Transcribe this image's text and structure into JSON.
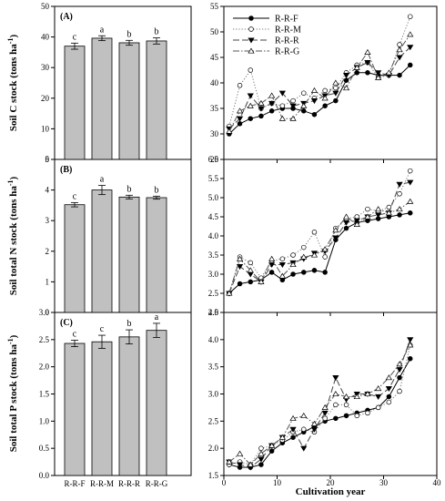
{
  "chart_data": [
    {
      "panel": "(A)",
      "type": "bar",
      "ylabel": "Soil C stock (tons ha",
      "ylabel_sup": "-1",
      "ylabel_close": ")",
      "categories": [
        "R-R-F",
        "R-R-M",
        "R-R-R",
        "R-R-G"
      ],
      "values": [
        37.0,
        39.6,
        38.1,
        38.7
      ],
      "errors": [
        1.0,
        0.8,
        0.8,
        1.0
      ],
      "letters": [
        "c",
        "a",
        "b",
        "b"
      ],
      "ylim": [
        0,
        50
      ],
      "yticks": [
        0,
        10,
        20,
        30,
        40,
        50
      ]
    },
    {
      "panel": "(B)",
      "type": "bar",
      "ylabel": "Soil total N stock (tons ha",
      "ylabel_sup": "-1",
      "ylabel_close": ")",
      "categories": [
        "R-R-F",
        "R-R-M",
        "R-R-R",
        "R-R-G"
      ],
      "values": [
        3.52,
        4.0,
        3.77,
        3.75
      ],
      "errors": [
        0.07,
        0.15,
        0.06,
        0.05
      ],
      "letters": [
        "c",
        "a",
        "b",
        "b"
      ],
      "ylim": [
        0,
        5
      ],
      "yticks": [
        0,
        1,
        2,
        3,
        4,
        5
      ]
    },
    {
      "panel": "(C)",
      "type": "bar",
      "ylabel": "Soil total P stock (tons ha",
      "ylabel_sup": "-1",
      "ylabel_close": ")",
      "categories": [
        "R-R-F",
        "R-R-M",
        "R-R-R",
        "R-R-G"
      ],
      "values": [
        2.43,
        2.46,
        2.55,
        2.67
      ],
      "errors": [
        0.06,
        0.12,
        0.13,
        0.13
      ],
      "letters": [
        "c",
        "c",
        "b",
        "a"
      ],
      "ylim": [
        0,
        3.0
      ],
      "yticks": [
        "0.0",
        "0.5",
        "1.0",
        "1.5",
        "2.0",
        "2.5",
        "3.0"
      ]
    },
    {
      "type": "line",
      "legend": {
        "placement": "top-left",
        "entries": [
          "R-R-F",
          "R-R-M",
          "R-R-R",
          "R-R-G"
        ]
      },
      "ylim": [
        25,
        55
      ],
      "yticks": [
        25,
        30,
        35,
        40,
        45,
        50,
        55
      ],
      "series": [
        {
          "name": "R-R-F",
          "x": [
            1,
            3,
            5,
            7,
            9,
            11,
            13,
            15,
            17,
            19,
            21,
            23,
            25,
            27,
            29,
            31,
            33,
            35
          ],
          "y": [
            30.0,
            32.0,
            33.0,
            33.5,
            34.5,
            35.0,
            35.0,
            34.5,
            33.8,
            35.5,
            36.5,
            40.5,
            42.0,
            42.0,
            41.5,
            41.5,
            41.5,
            43.5
          ]
        },
        {
          "name": "R-R-M",
          "x": [
            1,
            3,
            5,
            7,
            9,
            11,
            13,
            15,
            17,
            19,
            21,
            23,
            25,
            27,
            29,
            31,
            33,
            35
          ],
          "y": [
            31.5,
            39.5,
            42.5,
            35.0,
            36.0,
            35.5,
            36.5,
            38.0,
            37.0,
            38.5,
            39.0,
            42.0,
            43.5,
            44.0,
            41.0,
            41.5,
            47.5,
            53.0
          ]
        },
        {
          "name": "R-R-R",
          "x": [
            1,
            3,
            5,
            7,
            9,
            11,
            13,
            15,
            17,
            19,
            21,
            23,
            25,
            27,
            29,
            31,
            33,
            35
          ],
          "y": [
            31.0,
            33.0,
            37.5,
            35.0,
            36.0,
            38.0,
            35.5,
            36.0,
            36.5,
            37.5,
            38.0,
            41.5,
            43.0,
            44.0,
            42.0,
            41.5,
            45.0,
            47.0
          ]
        },
        {
          "name": "R-R-G",
          "x": [
            1,
            3,
            5,
            7,
            9,
            11,
            13,
            15,
            17,
            19,
            21,
            23,
            25,
            27,
            29,
            31,
            33,
            35
          ],
          "y": [
            30.5,
            34.5,
            35.5,
            36.0,
            37.5,
            33.0,
            33.0,
            35.5,
            38.5,
            37.0,
            40.0,
            39.0,
            43.0,
            46.0,
            41.0,
            42.0,
            46.5,
            49.5
          ]
        }
      ]
    },
    {
      "type": "line",
      "ylim": [
        2.0,
        6.0
      ],
      "yticks": [
        "2.0",
        "2.5",
        "3.0",
        "3.5",
        "4.0",
        "4.5",
        "5.0",
        "5.5",
        "6.0"
      ],
      "series": [
        {
          "name": "R-R-F",
          "x": [
            1,
            3,
            5,
            7,
            9,
            11,
            13,
            15,
            17,
            19,
            21,
            23,
            25,
            27,
            29,
            31,
            33,
            35
          ],
          "y": [
            2.5,
            2.75,
            2.8,
            2.85,
            3.05,
            2.85,
            3.0,
            3.05,
            3.1,
            3.05,
            3.9,
            4.2,
            4.35,
            4.4,
            4.45,
            4.5,
            4.55,
            4.6
          ]
        },
        {
          "name": "R-R-M",
          "x": [
            1,
            3,
            5,
            7,
            9,
            11,
            13,
            15,
            17,
            19,
            21,
            23,
            25,
            27,
            29,
            31,
            33,
            35
          ],
          "y": [
            2.5,
            3.45,
            3.3,
            2.9,
            3.35,
            3.4,
            3.5,
            3.7,
            4.1,
            3.45,
            4.2,
            4.45,
            4.5,
            4.7,
            4.65,
            4.75,
            5.1,
            5.7
          ]
        },
        {
          "name": "R-R-R",
          "x": [
            1,
            3,
            5,
            7,
            9,
            11,
            13,
            15,
            17,
            19,
            21,
            23,
            25,
            27,
            29,
            31,
            33,
            35
          ],
          "y": [
            2.5,
            3.2,
            3.0,
            2.8,
            3.25,
            3.25,
            3.3,
            3.4,
            3.55,
            3.6,
            3.95,
            4.35,
            4.4,
            4.5,
            4.55,
            4.6,
            5.35,
            5.4
          ]
        },
        {
          "name": "R-R-G",
          "x": [
            1,
            3,
            5,
            7,
            9,
            11,
            13,
            15,
            17,
            19,
            21,
            23,
            25,
            27,
            29,
            31,
            33,
            35
          ],
          "y": [
            2.5,
            3.4,
            3.1,
            2.8,
            3.4,
            2.95,
            3.25,
            3.45,
            3.5,
            3.65,
            4.15,
            4.5,
            4.3,
            4.5,
            4.7,
            4.6,
            4.7,
            4.9
          ]
        }
      ]
    },
    {
      "type": "line",
      "xlabel": "Cultivation year",
      "xlim": [
        0,
        40
      ],
      "xticks": [
        0,
        10,
        20,
        30,
        40
      ],
      "ylim": [
        1.5,
        4.5
      ],
      "yticks": [
        "1.5",
        "2.0",
        "2.5",
        "3.0",
        "3.5",
        "4.0",
        "4.5"
      ],
      "series": [
        {
          "name": "R-R-F",
          "x": [
            1,
            3,
            5,
            7,
            9,
            11,
            13,
            15,
            17,
            19,
            21,
            23,
            25,
            27,
            29,
            31,
            33,
            35
          ],
          "y": [
            1.7,
            1.65,
            1.65,
            1.7,
            1.95,
            2.1,
            2.2,
            2.3,
            2.4,
            2.5,
            2.55,
            2.6,
            2.65,
            2.7,
            2.75,
            2.95,
            3.3,
            3.65
          ]
        },
        {
          "name": "R-R-M",
          "x": [
            1,
            3,
            5,
            7,
            9,
            11,
            13,
            15,
            17,
            19,
            21,
            23,
            25,
            27,
            29,
            31,
            33,
            35
          ],
          "y": [
            1.7,
            1.75,
            1.7,
            2.0,
            2.05,
            2.15,
            2.3,
            2.35,
            2.3,
            2.55,
            2.8,
            2.8,
            2.6,
            2.65,
            2.75,
            2.85,
            3.05,
            3.9
          ]
        },
        {
          "name": "R-R-R",
          "x": [
            1,
            3,
            5,
            7,
            9,
            11,
            13,
            15,
            17,
            19,
            21,
            23,
            25,
            27,
            29,
            31,
            33,
            35
          ],
          "y": [
            1.75,
            1.7,
            1.65,
            1.8,
            2.05,
            2.2,
            2.35,
            2.0,
            2.35,
            2.65,
            3.3,
            2.9,
            3.0,
            3.0,
            2.95,
            3.1,
            3.45,
            4.0
          ]
        },
        {
          "name": "R-R-G",
          "x": [
            1,
            3,
            5,
            7,
            9,
            11,
            13,
            15,
            17,
            19,
            21,
            23,
            25,
            27,
            29,
            31,
            33,
            35
          ],
          "y": [
            1.75,
            1.9,
            1.7,
            1.9,
            2.05,
            2.2,
            2.55,
            2.6,
            2.45,
            2.75,
            3.0,
            2.95,
            2.95,
            3.0,
            3.1,
            3.3,
            3.55,
            3.9
          ]
        }
      ]
    }
  ]
}
